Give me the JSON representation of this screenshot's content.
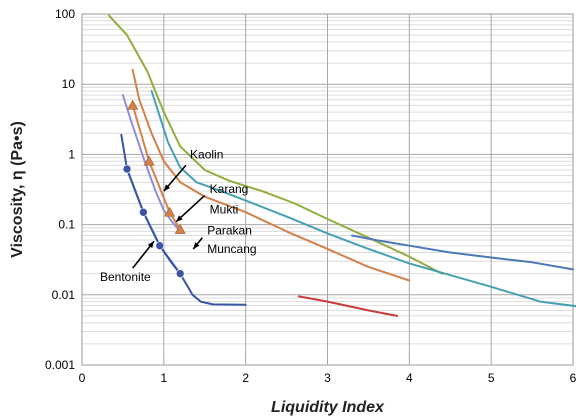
{
  "chart_data": {
    "type": "line",
    "title": "",
    "xlabel": "Liquidity Index",
    "ylabel": "Viscosity, η (Pa•s)",
    "xlim": [
      0,
      6
    ],
    "ylim": [
      0.001,
      100
    ],
    "yscale": "log",
    "grid": true,
    "x_ticks": [
      "0",
      "1",
      "2",
      "3",
      "4",
      "5",
      "6"
    ],
    "y_ticks": [
      {
        "value": 0.001,
        "label": "0.001"
      },
      {
        "value": 0.01,
        "label": "0.01"
      },
      {
        "value": 0.1,
        "label": "0.1"
      },
      {
        "value": 1,
        "label": "1"
      },
      {
        "value": 10,
        "label": "10"
      },
      {
        "value": 100,
        "label": "100"
      }
    ],
    "series": [
      {
        "color": "#8fae3e",
        "marker": "none",
        "points": [
          [
            0.33,
            95
          ],
          [
            0.55,
            50
          ],
          [
            0.8,
            15
          ],
          [
            1.0,
            4
          ],
          [
            1.2,
            1.3
          ],
          [
            1.5,
            0.6
          ],
          [
            1.8,
            0.42
          ],
          [
            2.2,
            0.3
          ],
          [
            2.6,
            0.2
          ],
          [
            3.0,
            0.12
          ],
          [
            3.5,
            0.065
          ],
          [
            4.0,
            0.035
          ],
          [
            4.4,
            0.02
          ]
        ]
      },
      {
        "color": "#46a0b4",
        "marker": "none",
        "points": [
          [
            0.85,
            8
          ],
          [
            0.95,
            3.5
          ],
          [
            1.05,
            1.5
          ],
          [
            1.2,
            0.65
          ],
          [
            1.4,
            0.4
          ],
          [
            1.7,
            0.3
          ],
          [
            2.0,
            0.22
          ],
          [
            2.5,
            0.13
          ],
          [
            3.0,
            0.075
          ],
          [
            3.5,
            0.045
          ],
          [
            4.0,
            0.028
          ],
          [
            5.0,
            0.013
          ],
          [
            5.6,
            0.008
          ],
          [
            6.2,
            0.0065
          ]
        ]
      },
      {
        "color": "#d4804a",
        "marker": "none",
        "points": [
          [
            0.62,
            16
          ],
          [
            0.7,
            6
          ],
          [
            0.85,
            2
          ],
          [
            1.0,
            0.8
          ],
          [
            1.2,
            0.4
          ],
          [
            1.5,
            0.25
          ],
          [
            2.0,
            0.15
          ],
          [
            2.5,
            0.08
          ],
          [
            3.0,
            0.045
          ],
          [
            3.5,
            0.025
          ],
          [
            4.0,
            0.016
          ]
        ]
      },
      {
        "color": "#4a78b8",
        "marker": "none",
        "points": [
          [
            3.3,
            0.07
          ],
          [
            3.6,
            0.06
          ],
          [
            4.0,
            0.05
          ],
          [
            4.5,
            0.04
          ],
          [
            5.0,
            0.034
          ],
          [
            5.5,
            0.029
          ],
          [
            6.0,
            0.023
          ]
        ]
      },
      {
        "color": "#c83c3c",
        "marker": "none",
        "points": [
          [
            2.65,
            0.0095
          ],
          [
            3.0,
            0.008
          ],
          [
            3.5,
            0.006
          ],
          [
            3.85,
            0.005
          ]
        ]
      },
      {
        "color": "#8f8fd6",
        "marker": "none",
        "points": [
          [
            0.5,
            7
          ],
          [
            0.6,
            3
          ],
          [
            0.75,
            0.9
          ],
          [
            0.9,
            0.3
          ],
          [
            1.0,
            0.16
          ],
          [
            1.1,
            0.11
          ],
          [
            1.2,
            0.08
          ]
        ]
      },
      {
        "color": "#d4804a",
        "marker": "triangle",
        "points": [
          [
            0.62,
            5
          ],
          [
            0.82,
            0.8
          ],
          [
            1.07,
            0.15
          ],
          [
            1.2,
            0.085
          ]
        ]
      },
      {
        "color": "#3b55a6",
        "marker": "circle",
        "points": [
          [
            0.55,
            0.62
          ],
          [
            0.75,
            0.15
          ],
          [
            0.95,
            0.05
          ],
          [
            1.2,
            0.02
          ]
        ]
      },
      {
        "color": "#3b55a6",
        "marker": "none",
        "points": [
          [
            0.48,
            1.9
          ],
          [
            0.55,
            0.62
          ],
          [
            0.75,
            0.15
          ],
          [
            0.95,
            0.05
          ],
          [
            1.1,
            0.028
          ],
          [
            1.2,
            0.02
          ],
          [
            1.35,
            0.01
          ],
          [
            1.45,
            0.008
          ],
          [
            1.6,
            0.0073
          ],
          [
            2.0,
            0.0072
          ]
        ]
      }
    ],
    "annotations": [
      {
        "text": "Kaolin",
        "x": 1.32,
        "y": 1.0
      },
      {
        "text": "Karang",
        "x": 1.56,
        "y": 0.32
      },
      {
        "text": "Mukti",
        "x": 1.56,
        "y": 0.165
      },
      {
        "text": "Parakan",
        "x": 1.53,
        "y": 0.082
      },
      {
        "text": "Muncang",
        "x": 1.53,
        "y": 0.045
      },
      {
        "text": "Bentonite",
        "x": 0.22,
        "y": 0.018
      }
    ]
  }
}
